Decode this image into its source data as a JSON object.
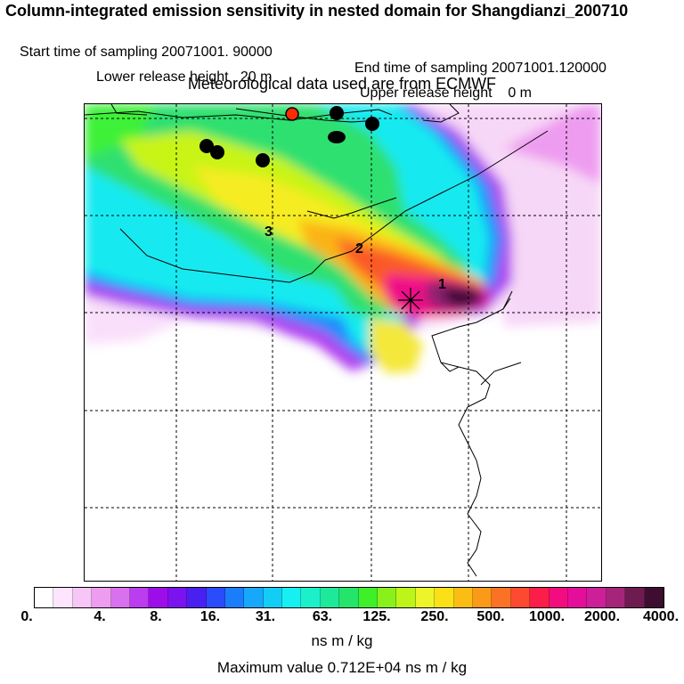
{
  "header": {
    "title": "Column-integrated emission sensitivity in nested domain for Shangdianzi_200710",
    "start": "Start time of sampling 20071001. 90000",
    "end": "End time of sampling 20071001.120000",
    "lower": "Lower release height   20 m",
    "upper": "Upper release height    0 m",
    "met": "Meteorological data used are from ECMWF"
  },
  "map": {
    "cluster_labels": [
      "1",
      "2",
      "3"
    ],
    "station_marker": "asterisk",
    "point_colors": {
      "black": "#000000",
      "red": "#ff2a00"
    }
  },
  "colorbar": {
    "tick_labels": [
      "0.",
      "4.",
      "8.",
      "16.",
      "31.",
      "63.",
      "125.",
      "250.",
      "500.",
      "1000.",
      "2000.",
      "4000."
    ],
    "colors": [
      "#ffffff",
      "#fde6fd",
      "#f6c6f6",
      "#ee9cf0",
      "#d971ee",
      "#bb3df0",
      "#9d0dea",
      "#7a13ee",
      "#4a20f0",
      "#2a4cfa",
      "#1a7dfb",
      "#18a8fb",
      "#12cdf5",
      "#16f0f0",
      "#1cf0c8",
      "#1ee89a",
      "#24e46a",
      "#3ff028",
      "#8af01b",
      "#bff41a",
      "#eef42a",
      "#fbe018",
      "#fbbd14",
      "#fb9a18",
      "#fb7224",
      "#fb4a30",
      "#fb1d4a",
      "#f20c80",
      "#e50e9a",
      "#cc2099",
      "#a5257a",
      "#6e1c50",
      "#3d0e30"
    ],
    "unit": "ns m / kg"
  },
  "footer": {
    "max_value": "Maximum value  0.712E+04 ns m / kg"
  }
}
